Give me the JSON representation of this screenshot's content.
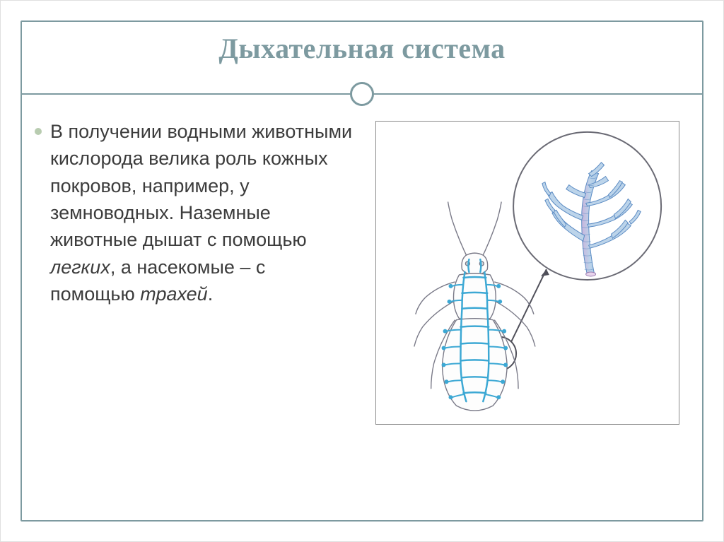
{
  "slide": {
    "title": "Дыхательная система",
    "bullet": {
      "full_html": "В получении водными животными кислорода велика роль кожных покровов, например, у земноводных. Наземные животные дышат с помощью <em>легких</em>, а насекомые – с помощью <em>трахей</em>."
    },
    "figure": {
      "type": "biology-illustration",
      "description": "insect tracheal respiratory system with magnified tracheal branch"
    }
  },
  "style": {
    "title_color": "#7d9aa0",
    "accent_color": "#7d9aa0",
    "frame_color": "#7d9aa0",
    "divider_color": "#7d9aa0",
    "bullet_color": "#b8ccb0",
    "text_color": "#3c3c3c",
    "background": "#ffffff",
    "title_fontsize": 40,
    "body_fontsize": 27,
    "illustration_palette": {
      "trachea_fill": "#a8c8e8",
      "trachea_stroke": "#5c8cc4",
      "trachea_highlight": "#d4b4dc",
      "insect_outline": "#7a7a88",
      "insect_trachea": "#3ca8d4",
      "circle_stroke": "#6a6a74"
    }
  }
}
